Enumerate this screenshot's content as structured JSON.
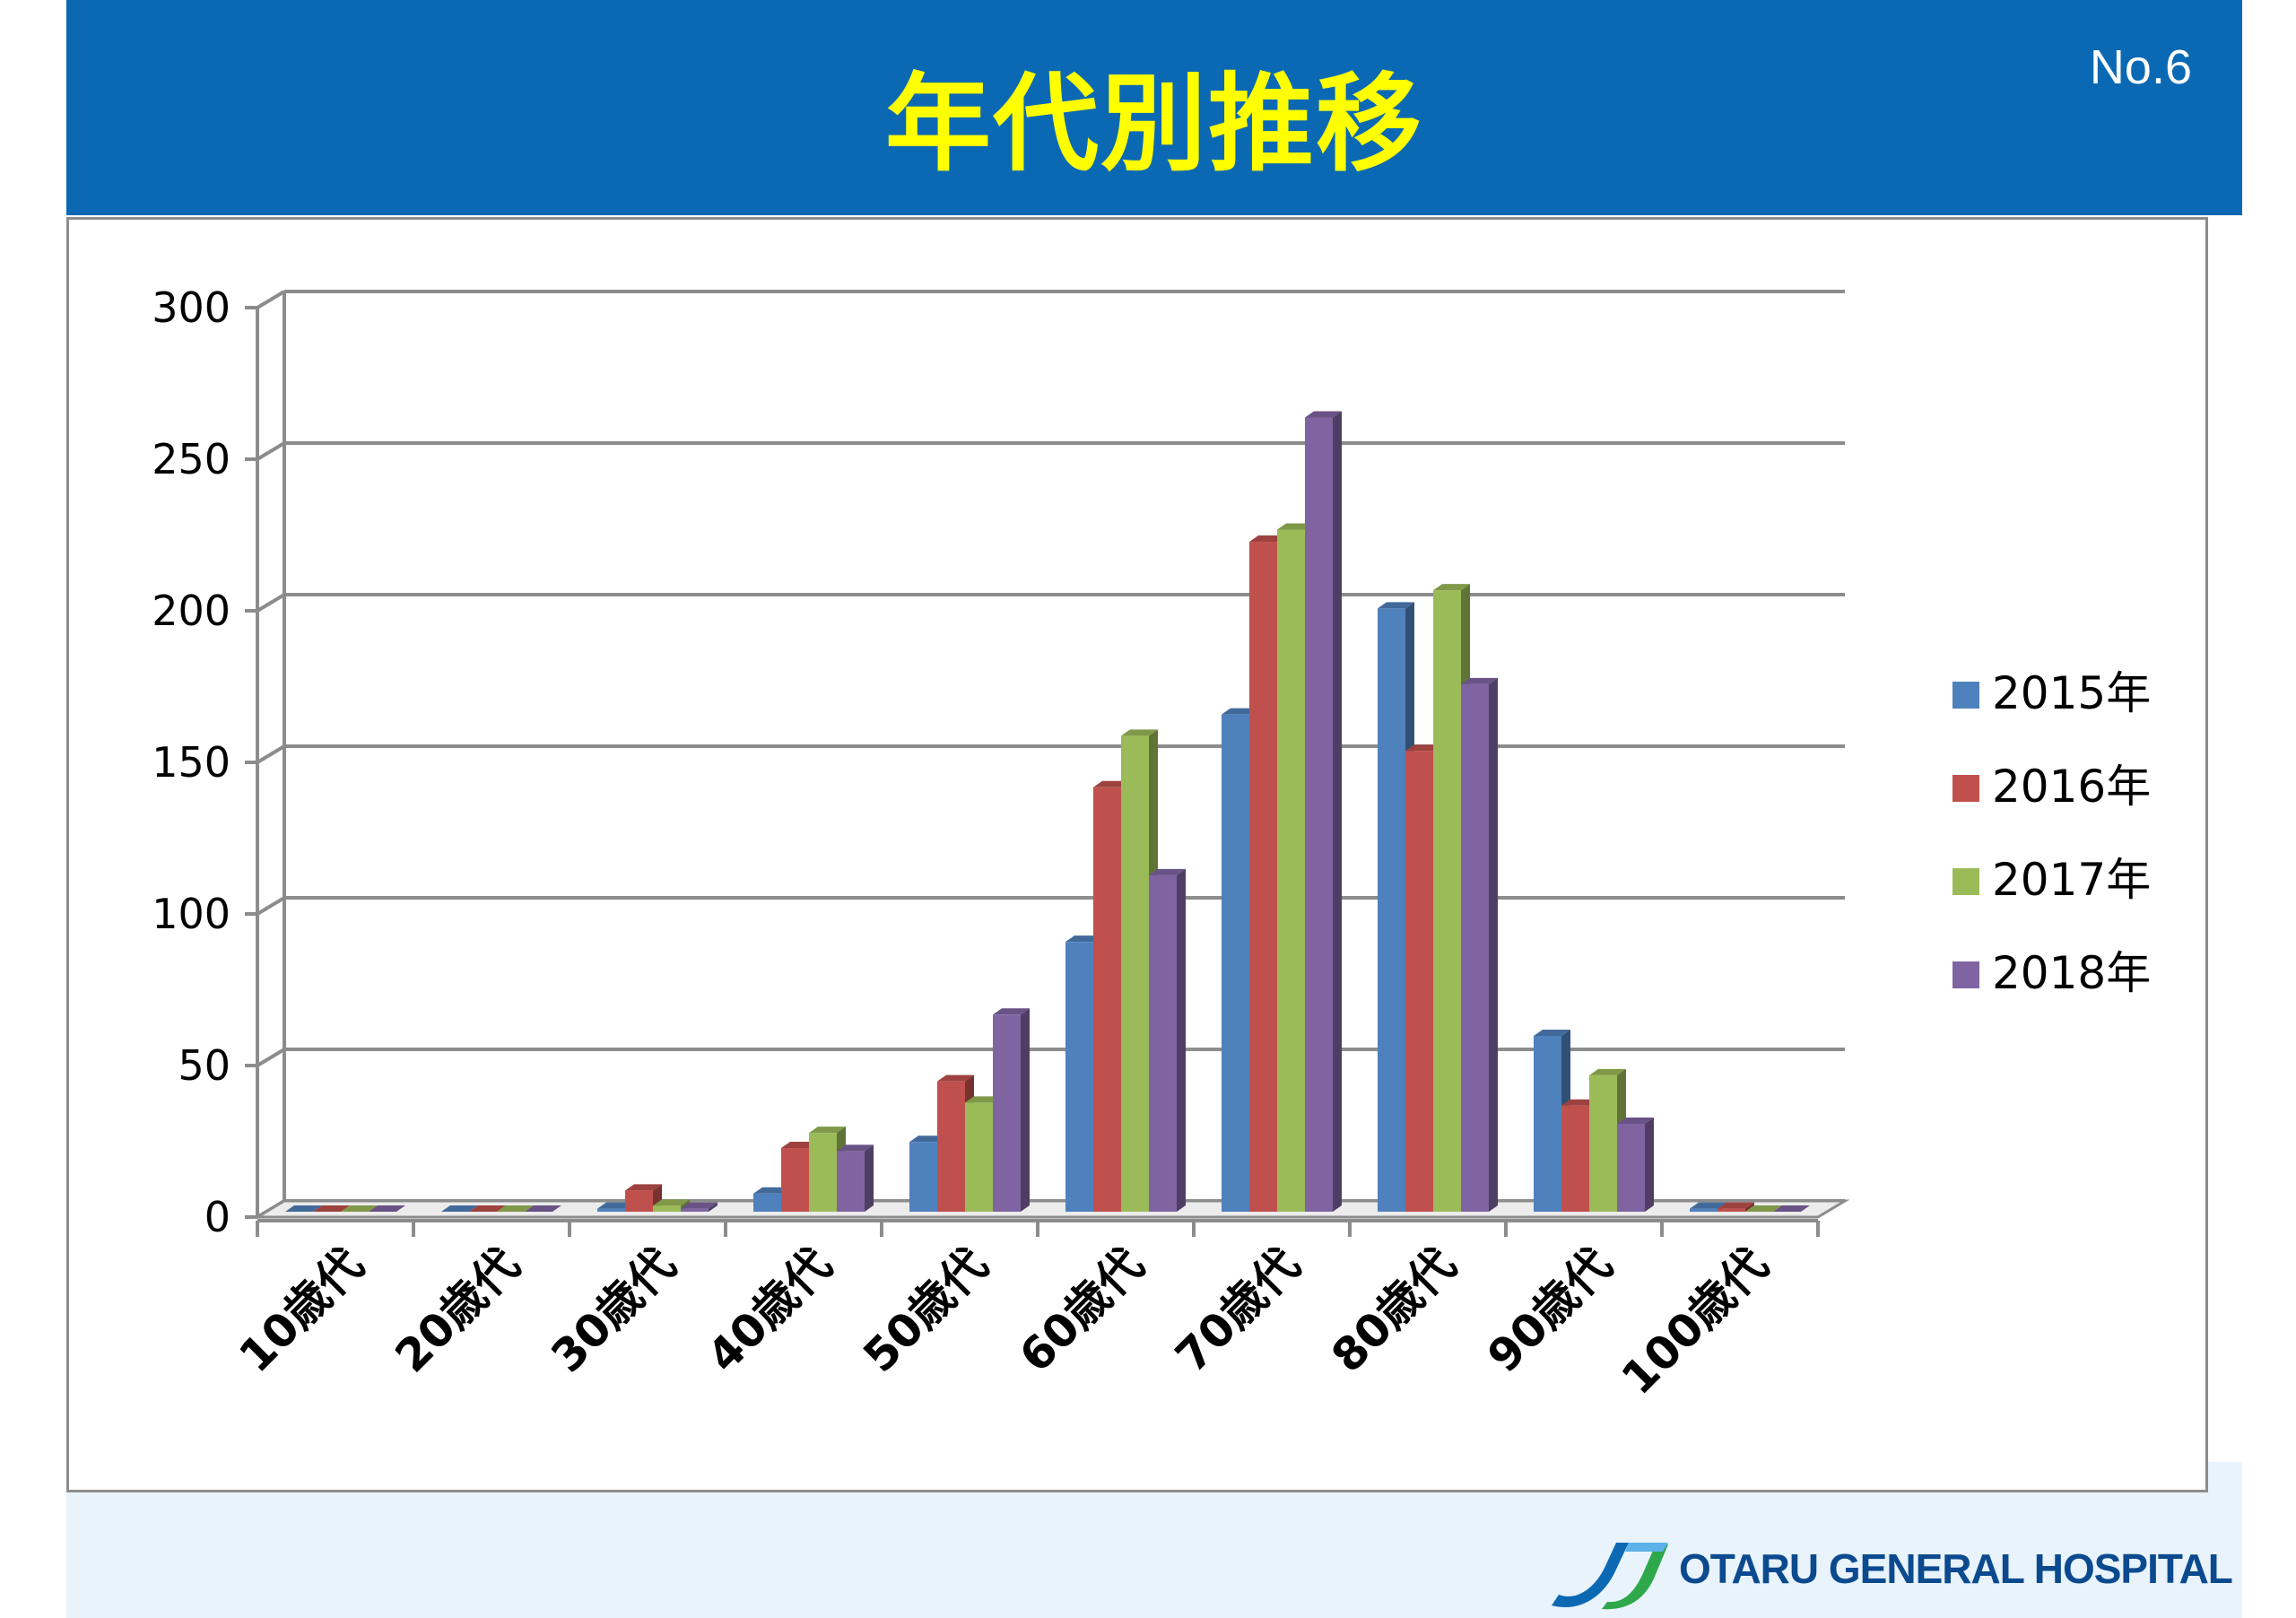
{
  "header": {
    "title": "年代別推移",
    "page_number": "No.6"
  },
  "logo": {
    "text": "OTARU GENERAL HOSPITAL"
  },
  "colors": {
    "header_bg": "#0b69b4",
    "title": "#ffff00",
    "footer_bg": "#e8f3fc"
  },
  "chart_data": {
    "type": "bar",
    "title": "",
    "xlabel": "",
    "ylabel": "",
    "ylim": [
      0,
      300
    ],
    "yticks": [
      0,
      50,
      100,
      150,
      200,
      250,
      300
    ],
    "grid": true,
    "legend_position": "right",
    "categories": [
      "10歳代",
      "20歳代",
      "30歳代",
      "40歳代",
      "50歳代",
      "60歳代",
      "70歳代",
      "80歳代",
      "90歳代",
      "100歳代"
    ],
    "series": [
      {
        "name": "2015年",
        "color": "#4f81bd",
        "values": [
          0,
          0,
          1,
          6,
          23,
          89,
          164,
          199,
          58,
          1
        ]
      },
      {
        "name": "2016年",
        "color": "#c0504d",
        "values": [
          0,
          0,
          7,
          21,
          43,
          140,
          221,
          152,
          35,
          1
        ]
      },
      {
        "name": "2017年",
        "color": "#9bbb59",
        "values": [
          0,
          0,
          2,
          26,
          36,
          157,
          225,
          205,
          45,
          0
        ]
      },
      {
        "name": "2018年",
        "color": "#8064a2",
        "values": [
          0,
          0,
          1,
          20,
          65,
          111,
          262,
          174,
          29,
          0
        ]
      }
    ]
  }
}
